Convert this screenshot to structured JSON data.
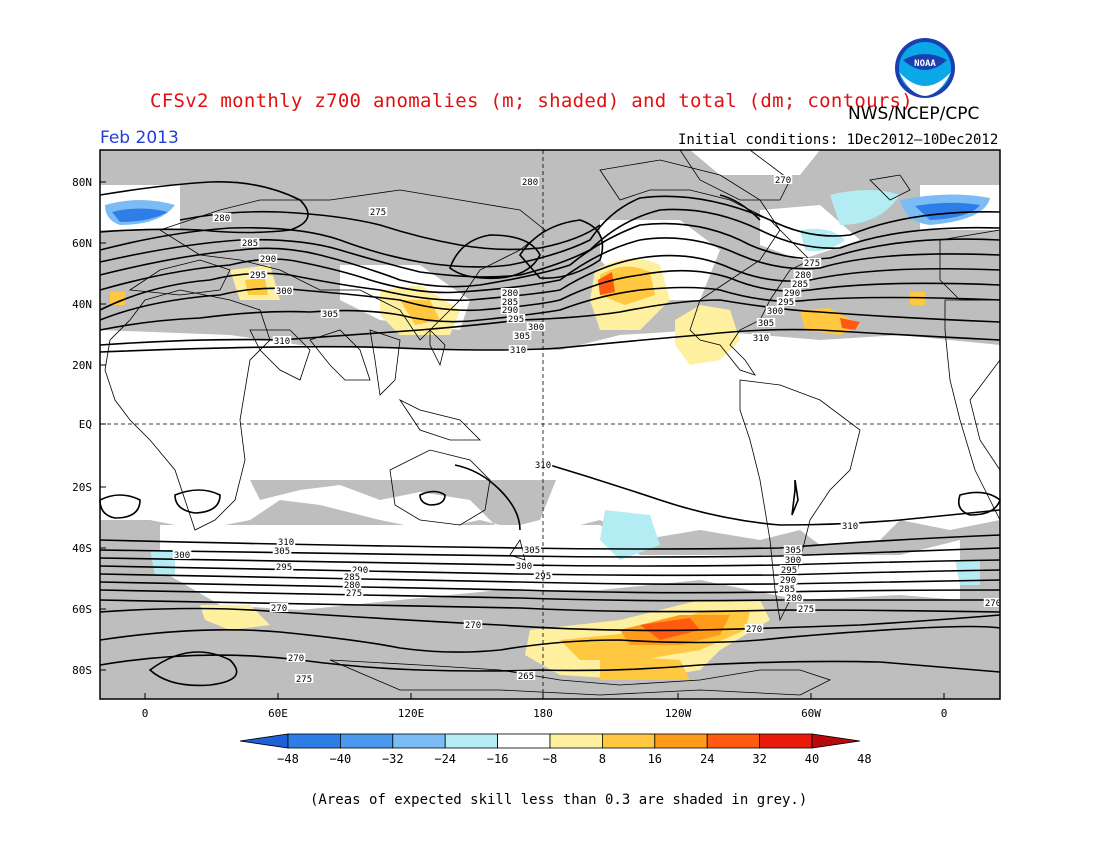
{
  "title": "CFSv2 monthly z700 anomalies (m; shaded) and total (dm; contours)",
  "organization": "NWS/NCEP/CPC",
  "logo_text": "NOAA",
  "valid_month": "Feb 2013",
  "initial_conditions": "Initial conditions: 1Dec2012—10Dec2012",
  "footnote": "(Areas of expected skill less than 0.3 are shaded in grey.)",
  "colors": {
    "grey_mask": "#bebebe",
    "title": "#e01010",
    "month": "#1f3fd8",
    "contour": "#000000"
  },
  "map": {
    "lat_labels": [
      "80N",
      "60N",
      "40N",
      "20N",
      "EQ",
      "20S",
      "40S",
      "60S",
      "80S"
    ],
    "lon_labels": [
      "0",
      "60E",
      "120E",
      "180",
      "120W",
      "60W",
      "0"
    ],
    "contour_levels": [
      {
        "label": "265",
        "value": 265
      },
      {
        "label": "270",
        "value": 270
      },
      {
        "label": "275",
        "value": 275
      },
      {
        "label": "280",
        "value": 280
      },
      {
        "label": "285",
        "value": 285
      },
      {
        "label": "290",
        "value": 290
      },
      {
        "label": "295",
        "value": 295
      },
      {
        "label": "300",
        "value": 300
      },
      {
        "label": "305",
        "value": 305
      },
      {
        "label": "310",
        "value": 310
      }
    ]
  },
  "colorbar": {
    "ticks": [
      "-48",
      "-40",
      "-32",
      "-24",
      "-16",
      "-8",
      "8",
      "16",
      "24",
      "32",
      "40",
      "48"
    ],
    "colors": [
      "#1d60d8",
      "#2f7ee8",
      "#4a98f0",
      "#7cbcf4",
      "#b4ecf4",
      "#ffffff",
      "#fff0a0",
      "#ffc840",
      "#ff9a1a",
      "#ff5a10",
      "#e81a0a",
      "#b80a0a"
    ]
  }
}
